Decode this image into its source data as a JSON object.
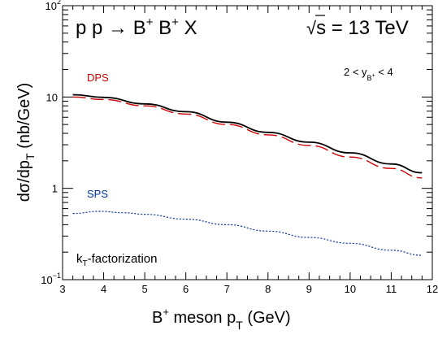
{
  "chart_data": {
    "type": "line",
    "x_scale": "linear",
    "y_scale": "log",
    "xlim": [
      3,
      12
    ],
    "ylim": [
      0.1,
      100
    ],
    "grid": false,
    "xlabel": {
      "base": "B",
      "base_sup": "+",
      "rest": " meson  p",
      "sub": "T",
      "unit": "   (GeV)"
    },
    "ylabel": {
      "part1": "dσ/dp",
      "sub": "T",
      "part2": "   (nb/GeV)"
    },
    "x_ticks": [
      3,
      4,
      5,
      6,
      7,
      8,
      9,
      10,
      11,
      12
    ],
    "x_tick_labels": [
      "3",
      "4",
      "5",
      "6",
      "7",
      "8",
      "9",
      "10",
      "11",
      "12"
    ],
    "y_ticks": [
      {
        "value": 0.1,
        "base": "10",
        "exp": "−1"
      },
      {
        "value": 1,
        "base": "1",
        "exp": ""
      },
      {
        "value": 10,
        "base": "10",
        "exp": ""
      },
      {
        "value": 100,
        "base": "10",
        "exp": "2"
      }
    ],
    "title": {
      "part1": "p p → B",
      "sup1": "+",
      "part2": " B",
      "sup2": "+",
      "part3": " X"
    },
    "energy_label": {
      "sqrt": "√",
      "text": "s = 13 TeV"
    },
    "rapidity_label": {
      "part1": "2 < y",
      "sub": "B",
      "subsup": "+",
      "part2": " < 4"
    },
    "annotation": {
      "k": "k",
      "sub": "T",
      "rest": "-factorization"
    },
    "series": [
      {
        "name": "",
        "color": "#000000",
        "style": "solid",
        "x": [
          3.25,
          4,
          5,
          6,
          7,
          8,
          9,
          10,
          11,
          11.75
        ],
        "y": [
          10.6,
          9.9,
          8.4,
          6.9,
          5.3,
          4.1,
          3.2,
          2.45,
          1.85,
          1.48
        ]
      },
      {
        "name": "DPS",
        "color": "#cc0000",
        "style": "long-dash",
        "x": [
          3.25,
          4,
          5,
          6,
          7,
          8,
          9,
          10,
          11,
          11.75
        ],
        "y": [
          10.0,
          9.4,
          8.0,
          6.5,
          5.0,
          3.85,
          2.95,
          2.2,
          1.65,
          1.3
        ]
      },
      {
        "name": "SPS",
        "color": "#003399",
        "style": "dotted",
        "x": [
          3.25,
          3.9,
          4.5,
          5,
          6,
          7,
          8,
          9,
          10,
          11,
          11.75
        ],
        "y": [
          0.53,
          0.56,
          0.54,
          0.52,
          0.46,
          0.4,
          0.34,
          0.29,
          0.25,
          0.21,
          0.185
        ]
      }
    ]
  }
}
